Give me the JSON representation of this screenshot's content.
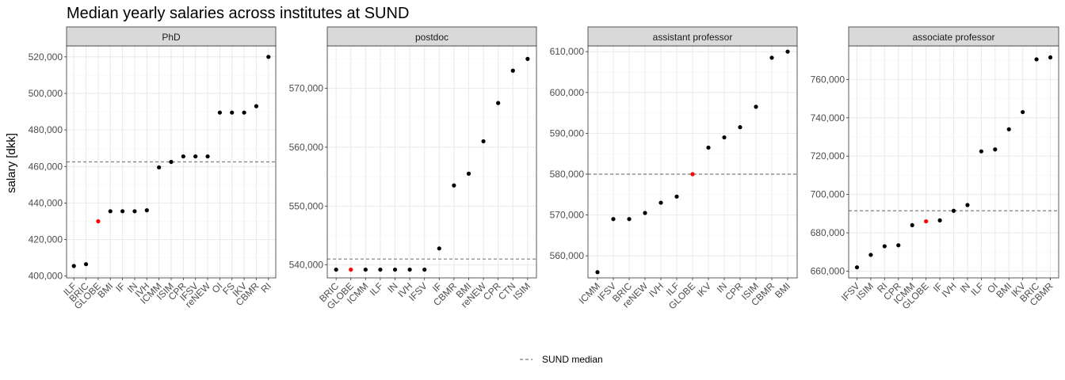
{
  "chart_data": {
    "type": "scatter",
    "title": "Median yearly salaries across institutes at SUND",
    "ylabel": "salary [dkk]",
    "legend": {
      "label": "SUND median",
      "placement": "bottom"
    },
    "colors": {
      "point": "#000000",
      "highlight": "#ff0000",
      "median_line": "#7f7f7f",
      "strip": "#d9d9d9",
      "grid_major": "#ebebeb",
      "grid_minor": "#f5f5f5"
    },
    "highlight_category": "GLOBE",
    "panels": [
      {
        "strip": "PhD",
        "ylim": [
          399000,
          526000
        ],
        "yticks": [
          400000,
          420000,
          440000,
          460000,
          480000,
          500000,
          520000
        ],
        "ytick_labels": [
          "400,000",
          "420,000",
          "440,000",
          "460,000",
          "480,000",
          "500,000",
          "520,000"
        ],
        "median": 462500,
        "categories": [
          "ILF",
          "BRIC",
          "GLOBE",
          "BMI",
          "IF",
          "IN",
          "IVH",
          "ICMM",
          "ISIM",
          "CPR",
          "IFSV",
          "reNEW",
          "OI",
          "FS",
          "IKV",
          "CBMR",
          "RI"
        ],
        "values": [
          405500,
          406500,
          430000,
          435500,
          435500,
          435500,
          436000,
          459500,
          462500,
          465500,
          465500,
          465500,
          489500,
          489500,
          489500,
          493000,
          520000
        ]
      },
      {
        "strip": "postdoc",
        "ylim": [
          537800,
          577200
        ],
        "yticks": [
          540000,
          550000,
          560000,
          570000
        ],
        "ytick_labels": [
          "540,000",
          "550,000",
          "560,000",
          "570,000"
        ],
        "median": 541000,
        "categories": [
          "BRIC",
          "GLOBE",
          "ICMM",
          "ILF",
          "IN",
          "IVH",
          "IFSV",
          "IF",
          "CBMR",
          "BMI",
          "reNEW",
          "CPR",
          "CTN",
          "ISIM"
        ],
        "values": [
          539200,
          539200,
          539200,
          539200,
          539200,
          539200,
          539200,
          542800,
          553500,
          555500,
          561000,
          567500,
          573000,
          575000
        ]
      },
      {
        "strip": "assistant professor",
        "ylim": [
          554600,
          611400
        ],
        "yticks": [
          560000,
          570000,
          580000,
          590000,
          600000,
          610000
        ],
        "ytick_labels": [
          "560,000",
          "570,000",
          "580,000",
          "590,000",
          "600,000",
          "610,000"
        ],
        "median": 580000,
        "categories": [
          "ICMM",
          "IFSV",
          "BRIC",
          "reNEW",
          "IVH",
          "ILF",
          "GLOBE",
          "IKV",
          "IN",
          "CPR",
          "ISIM",
          "CBMR",
          "BMI"
        ],
        "values": [
          556000,
          569000,
          569000,
          570500,
          573000,
          574500,
          580000,
          586500,
          589000,
          591500,
          596500,
          608500,
          610000
        ]
      },
      {
        "strip": "associate professor",
        "ylim": [
          656500,
          777500
        ],
        "yticks": [
          660000,
          680000,
          700000,
          720000,
          740000,
          760000
        ],
        "ytick_labels": [
          "660,000",
          "680,000",
          "700,000",
          "720,000",
          "740,000",
          "760,000"
        ],
        "median": 691500,
        "categories": [
          "IFSV",
          "ISIM",
          "RI",
          "CPR",
          "ICMM",
          "GLOBE",
          "IF",
          "IVH",
          "IN",
          "ILF",
          "OI",
          "BMI",
          "IKV",
          "BRIC",
          "CBMR"
        ],
        "values": [
          662000,
          668500,
          673000,
          673500,
          684000,
          686000,
          686500,
          691500,
          694500,
          722500,
          723500,
          734000,
          743000,
          770500,
          771500
        ]
      }
    ]
  }
}
